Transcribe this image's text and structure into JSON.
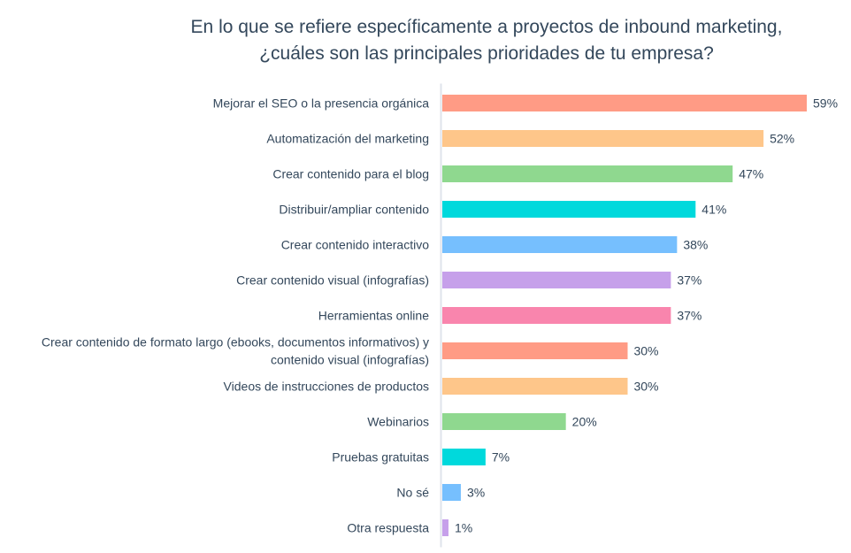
{
  "chart_data": {
    "type": "bar",
    "orientation": "horizontal",
    "title": "En lo que se refiere específicamente a proyectos de inbound marketing, ¿cuáles son las principales prioridades de tu empresa?",
    "title_lines": [
      "En lo que se refiere específicamente a proyectos de inbound marketing,",
      "¿cuáles son las principales prioridades de tu empresa?"
    ],
    "xlabel": "",
    "ylabel": "",
    "xlim": [
      0,
      100
    ],
    "grid": false,
    "legend": "none",
    "value_suffix": "%",
    "categories": [
      [
        "Mejorar el SEO o la presencia orgánica"
      ],
      [
        "Automatización del marketing"
      ],
      [
        "Crear contenido para el blog"
      ],
      [
        "Distribuir/ampliar contenido"
      ],
      [
        "Crear contenido interactivo"
      ],
      [
        "Crear contenido visual (infografías)"
      ],
      [
        "Herramientas online"
      ],
      [
        "Crear contenido de formato largo (ebooks, documentos informativos) y",
        "contenido visual (infografías)"
      ],
      [
        "Videos de instrucciones de productos"
      ],
      [
        "Webinarios"
      ],
      [
        "Pruebas gratuitas"
      ],
      [
        "No sé"
      ],
      [
        "Otra respuesta"
      ]
    ],
    "values": [
      59,
      52,
      47,
      41,
      38,
      37,
      37,
      30,
      30,
      20,
      7,
      3,
      1
    ],
    "value_labels": [
      "59%",
      "52%",
      "47%",
      "41%",
      "38%",
      "37%",
      "37%",
      "30%",
      "30%",
      "20%",
      "7%",
      "3%",
      "1%"
    ],
    "colors": [
      "#ff9b85",
      "#fec68a",
      "#8fd88f",
      "#00d9dc",
      "#76bffe",
      "#c6a0ea",
      "#f985ad",
      "#ff9b85",
      "#fec68a",
      "#8fd88f",
      "#00d9dc",
      "#76bffe",
      "#c6a0ea"
    ],
    "axis_color": "#dfe3eb"
  }
}
